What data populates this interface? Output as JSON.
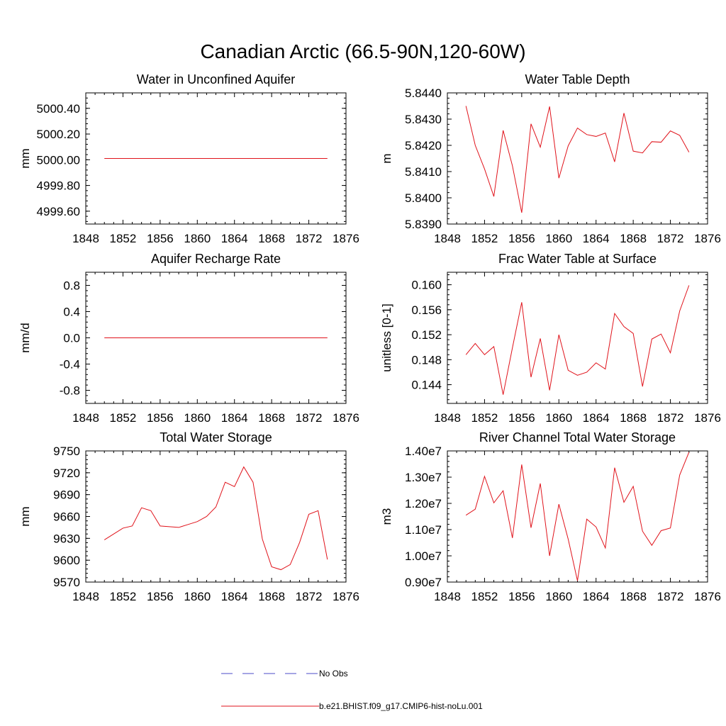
{
  "figure": {
    "title": "Canadian Arctic (66.5-90N,120-60W)"
  },
  "legend": {
    "items": [
      {
        "label": "No Obs",
        "color": "#4b4bc8",
        "style": "dashed"
      },
      {
        "label": "b.e21.BHIST.f09_g17.CMIP6-hist-noLu.001",
        "color": "#e0131b",
        "style": "solid"
      }
    ]
  },
  "colors": {
    "series": "#e0131b",
    "axis": "#000000"
  },
  "chart_data": [
    {
      "type": "line",
      "title": "Water in Unconfined Aquifer",
      "ylabel": "mm",
      "xlim": [
        1848,
        1876
      ],
      "ylim": [
        4999.5,
        5000.52
      ],
      "xticks": [
        1848,
        1852,
        1856,
        1860,
        1864,
        1868,
        1872,
        1876
      ],
      "xtick_labels": [
        "1848",
        "1852",
        "1856",
        "1860",
        "1864",
        "1868",
        "1872",
        "1876"
      ],
      "yticks": [
        4999.6,
        4999.8,
        5000.0,
        5000.2,
        5000.4
      ],
      "ytick_labels": [
        "4999.60",
        "4999.80",
        "5000.00",
        "5000.20",
        "5000.40"
      ],
      "x": [
        1850,
        1851,
        1852,
        1853,
        1854,
        1855,
        1856,
        1857,
        1858,
        1859,
        1860,
        1861,
        1862,
        1863,
        1864,
        1865,
        1866,
        1867,
        1868,
        1869,
        1870,
        1871,
        1872,
        1873,
        1874
      ],
      "series": [
        {
          "values": [
            5000.01,
            5000.01,
            5000.01,
            5000.01,
            5000.01,
            5000.01,
            5000.01,
            5000.01,
            5000.01,
            5000.01,
            5000.01,
            5000.01,
            5000.01,
            5000.01,
            5000.01,
            5000.01,
            5000.01,
            5000.01,
            5000.01,
            5000.01,
            5000.01,
            5000.01,
            5000.01,
            5000.01,
            5000.01
          ]
        }
      ]
    },
    {
      "type": "line",
      "title": "Water Table Depth",
      "ylabel": "m",
      "xlim": [
        1848,
        1876
      ],
      "ylim": [
        5.839,
        5.844
      ],
      "xticks": [
        1848,
        1852,
        1856,
        1860,
        1864,
        1868,
        1872,
        1876
      ],
      "xtick_labels": [
        "1848",
        "1852",
        "1856",
        "1860",
        "1864",
        "1868",
        "1872",
        "1876"
      ],
      "yticks": [
        5.839,
        5.84,
        5.841,
        5.842,
        5.843,
        5.844
      ],
      "ytick_labels": [
        "5.8390",
        "5.8400",
        "5.8410",
        "5.8420",
        "5.8430",
        "5.8440"
      ],
      "x": [
        1850,
        1851,
        1852,
        1853,
        1854,
        1855,
        1856,
        1857,
        1858,
        1859,
        1860,
        1861,
        1862,
        1863,
        1864,
        1865,
        1866,
        1867,
        1868,
        1869,
        1870,
        1871,
        1872,
        1873,
        1874
      ],
      "series": [
        {
          "values": [
            5.8435,
            5.842,
            5.8411,
            5.84005,
            5.84257,
            5.84122,
            5.83943,
            5.84282,
            5.84193,
            5.84348,
            5.84075,
            5.84198,
            5.84266,
            5.84241,
            5.84234,
            5.84247,
            5.84137,
            5.84323,
            5.84178,
            5.84171,
            5.84214,
            5.84212,
            5.84255,
            5.84238,
            5.84174
          ]
        }
      ]
    },
    {
      "type": "line",
      "title": "Aquifer Recharge Rate",
      "ylabel": "mm/d",
      "xlim": [
        1848,
        1876
      ],
      "ylim": [
        -1.0,
        1.0
      ],
      "xticks": [
        1848,
        1852,
        1856,
        1860,
        1864,
        1868,
        1872,
        1876
      ],
      "xtick_labels": [
        "1848",
        "1852",
        "1856",
        "1860",
        "1864",
        "1868",
        "1872",
        "1876"
      ],
      "yticks": [
        -0.8,
        -0.4,
        0.0,
        0.4,
        0.8
      ],
      "ytick_labels": [
        "-0.8",
        "-0.4",
        "0.0",
        "0.4",
        "0.8"
      ],
      "x": [
        1850,
        1851,
        1852,
        1853,
        1854,
        1855,
        1856,
        1857,
        1858,
        1859,
        1860,
        1861,
        1862,
        1863,
        1864,
        1865,
        1866,
        1867,
        1868,
        1869,
        1870,
        1871,
        1872,
        1873,
        1874
      ],
      "series": [
        {
          "values": [
            0,
            0,
            0,
            0,
            0,
            0,
            0,
            0,
            0,
            0,
            0,
            0,
            0,
            0,
            0,
            0,
            0,
            0,
            0,
            0,
            0,
            0,
            0,
            0,
            0
          ]
        }
      ]
    },
    {
      "type": "line",
      "title": "Frac Water Table at Surface",
      "ylabel": "unitless [0-1]",
      "xlim": [
        1848,
        1876
      ],
      "ylim": [
        0.141,
        0.162
      ],
      "xticks": [
        1848,
        1852,
        1856,
        1860,
        1864,
        1868,
        1872,
        1876
      ],
      "xtick_labels": [
        "1848",
        "1852",
        "1856",
        "1860",
        "1864",
        "1868",
        "1872",
        "1876"
      ],
      "yticks": [
        0.144,
        0.148,
        0.152,
        0.156,
        0.16
      ],
      "ytick_labels": [
        "0.144",
        "0.148",
        "0.152",
        "0.156",
        "0.160"
      ],
      "x": [
        1850,
        1851,
        1852,
        1853,
        1854,
        1855,
        1856,
        1857,
        1858,
        1859,
        1860,
        1861,
        1862,
        1863,
        1864,
        1865,
        1866,
        1867,
        1868,
        1869,
        1870,
        1871,
        1872,
        1873,
        1874
      ],
      "series": [
        {
          "values": [
            0.1488,
            0.1506,
            0.1488,
            0.1501,
            0.1424,
            0.1499,
            0.1572,
            0.1452,
            0.1514,
            0.1431,
            0.152,
            0.1463,
            0.1455,
            0.146,
            0.1475,
            0.1465,
            0.1554,
            0.1533,
            0.1522,
            0.1437,
            0.1513,
            0.1521,
            0.1491,
            0.1558,
            0.1599
          ]
        }
      ]
    },
    {
      "type": "line",
      "title": "Total Water Storage",
      "ylabel": "mm",
      "xlim": [
        1848,
        1876
      ],
      "ylim": [
        9570,
        9750
      ],
      "xticks": [
        1848,
        1852,
        1856,
        1860,
        1864,
        1868,
        1872,
        1876
      ],
      "xtick_labels": [
        "1848",
        "1852",
        "1856",
        "1860",
        "1864",
        "1868",
        "1872",
        "1876"
      ],
      "yticks": [
        9570,
        9600,
        9630,
        9660,
        9690,
        9720,
        9750
      ],
      "ytick_labels": [
        "9570",
        "9600",
        "9630",
        "9660",
        "9690",
        "9720",
        "9750"
      ],
      "x": [
        1850,
        1851,
        1852,
        1853,
        1854,
        1855,
        1856,
        1857,
        1858,
        1859,
        1860,
        1861,
        1862,
        1863,
        1864,
        1865,
        1866,
        1867,
        1868,
        1869,
        1870,
        1871,
        1872,
        1873,
        1874
      ],
      "series": [
        {
          "values": [
            9628,
            9636,
            9644,
            9647,
            9672,
            9668,
            9647,
            9646,
            9645,
            9649,
            9653,
            9660,
            9673,
            9707,
            9701,
            9728,
            9707,
            9629,
            9591,
            9587,
            9594,
            9624,
            9663,
            9668,
            9601
          ]
        }
      ]
    },
    {
      "type": "line",
      "title": "River Channel Total Water Storage",
      "ylabel": "m3",
      "xlim": [
        1848,
        1876
      ],
      "ylim": [
        9000000,
        14000000
      ],
      "xticks": [
        1848,
        1852,
        1856,
        1860,
        1864,
        1868,
        1872,
        1876
      ],
      "xtick_labels": [
        "1848",
        "1852",
        "1856",
        "1860",
        "1864",
        "1868",
        "1872",
        "1876"
      ],
      "yticks": [
        9000000,
        10000000,
        11000000,
        12000000,
        13000000,
        14000000
      ],
      "ytick_labels": [
        "0.90e7",
        "1.00e7",
        "1.10e7",
        "1.20e7",
        "1.30e7",
        "1.40e7"
      ],
      "x": [
        1850,
        1851,
        1852,
        1853,
        1854,
        1855,
        1856,
        1857,
        1858,
        1859,
        1860,
        1861,
        1862,
        1863,
        1864,
        1865,
        1866,
        1867,
        1868,
        1869,
        1870,
        1871,
        1872,
        1873,
        1874
      ],
      "series": [
        {
          "values": [
            11550000,
            11780000,
            13030000,
            12020000,
            12480000,
            10680000,
            13480000,
            11070000,
            12760000,
            10000000,
            11970000,
            10640000,
            9050000,
            11400000,
            11100000,
            10300000,
            13360000,
            12040000,
            12650000,
            10940000,
            10400000,
            10960000,
            11060000,
            13080000,
            13950000
          ]
        }
      ]
    }
  ]
}
